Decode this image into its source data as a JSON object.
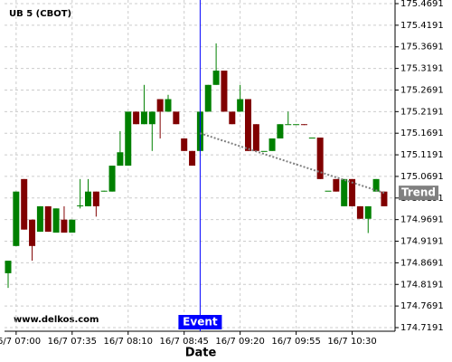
{
  "chart_data": {
    "type": "candlestick",
    "title": "UB 5 (CBOT)",
    "watermark": "www.delkos.com",
    "x_label": "Date",
    "categories": [
      null,
      "16/7 07:00",
      null,
      null,
      null,
      null,
      null,
      null,
      "16/7 07:35",
      null,
      null,
      null,
      null,
      null,
      null,
      "16/7 08:10",
      null,
      null,
      null,
      null,
      null,
      null,
      "16/7 08:45",
      null,
      null,
      null,
      null,
      null,
      null,
      "16/7 09:20",
      null,
      null,
      null,
      null,
      null,
      null,
      "16/7 09:55",
      null,
      null,
      null,
      null,
      null,
      null,
      "16/7 10:30",
      null,
      null,
      null,
      null
    ],
    "open": [
      174.845,
      174.908,
      175.063,
      174.969,
      174.941,
      175.0,
      174.939,
      174.969,
      174.939,
      175.0,
      175.0,
      175.034,
      175.034,
      175.034,
      175.094,
      175.094,
      175.219,
      175.19,
      175.19,
      175.248,
      175.219,
      175.219,
      175.157,
      175.128,
      175.128,
      175.219,
      175.281,
      175.314,
      175.219,
      175.219,
      175.248,
      175.19,
      175.128,
      175.128,
      175.157,
      175.19,
      175.19,
      175.19,
      175.159,
      175.159,
      175.036,
      175.063,
      175.0,
      175.063,
      175.0,
      174.971,
      175.034,
      175.034
    ],
    "high": [
      174.874,
      175.034,
      175.063,
      174.969,
      175.0,
      175.0,
      174.995,
      175.0,
      174.969,
      175.063,
      175.063,
      175.034,
      175.036,
      175.094,
      175.174,
      175.219,
      175.219,
      175.281,
      175.219,
      175.248,
      175.258,
      175.219,
      175.157,
      175.128,
      175.219,
      175.281,
      175.377,
      175.314,
      175.219,
      175.281,
      175.248,
      175.19,
      175.128,
      175.157,
      175.19,
      175.219,
      175.19,
      175.19,
      175.159,
      175.159,
      175.036,
      175.063,
      175.063,
      175.063,
      175.0,
      175.0,
      175.063,
      175.034
    ],
    "low": [
      174.811,
      174.908,
      174.946,
      174.874,
      174.941,
      174.941,
      174.939,
      174.939,
      174.939,
      174.995,
      175.0,
      174.976,
      175.034,
      175.034,
      175.094,
      175.094,
      175.19,
      175.19,
      175.128,
      175.157,
      175.219,
      175.19,
      175.128,
      175.094,
      175.128,
      175.219,
      175.281,
      175.219,
      175.19,
      175.219,
      175.128,
      175.128,
      175.128,
      175.128,
      175.157,
      175.19,
      175.19,
      175.188,
      175.159,
      175.063,
      175.036,
      175.034,
      175.0,
      175.0,
      174.971,
      174.938,
      175.034,
      175.0
    ],
    "close": [
      174.874,
      175.034,
      174.946,
      174.908,
      175.0,
      174.941,
      174.995,
      174.939,
      174.969,
      175.002,
      175.034,
      175.0,
      175.036,
      175.094,
      175.125,
      175.219,
      175.19,
      175.219,
      175.219,
      175.219,
      175.248,
      175.19,
      175.128,
      175.094,
      175.219,
      175.281,
      175.314,
      175.219,
      175.19,
      175.248,
      175.128,
      175.128,
      175.128,
      175.157,
      175.19,
      175.19,
      175.19,
      175.188,
      175.159,
      175.063,
      175.036,
      175.034,
      175.063,
      175.0,
      174.971,
      175.0,
      175.063,
      175.0
    ],
    "up_color": "#008000",
    "down_color": "#800000",
    "event": {
      "label": "Event",
      "index": 24,
      "color": "#0000ff"
    },
    "trend": {
      "label": "Trend",
      "color": "#808080",
      "start": [
        24,
        175.169
      ],
      "end": [
        47,
        175.031
      ]
    },
    "ylim": [
      174.7107,
      175.4775
    ],
    "yticks": [
      175.4691,
      175.4191,
      175.3691,
      175.3191,
      175.2691,
      175.2191,
      175.1691,
      175.1191,
      175.0691,
      175.0191,
      174.9691,
      174.9191,
      174.8691,
      174.8191,
      174.7691,
      174.7191
    ],
    "grid": true
  }
}
